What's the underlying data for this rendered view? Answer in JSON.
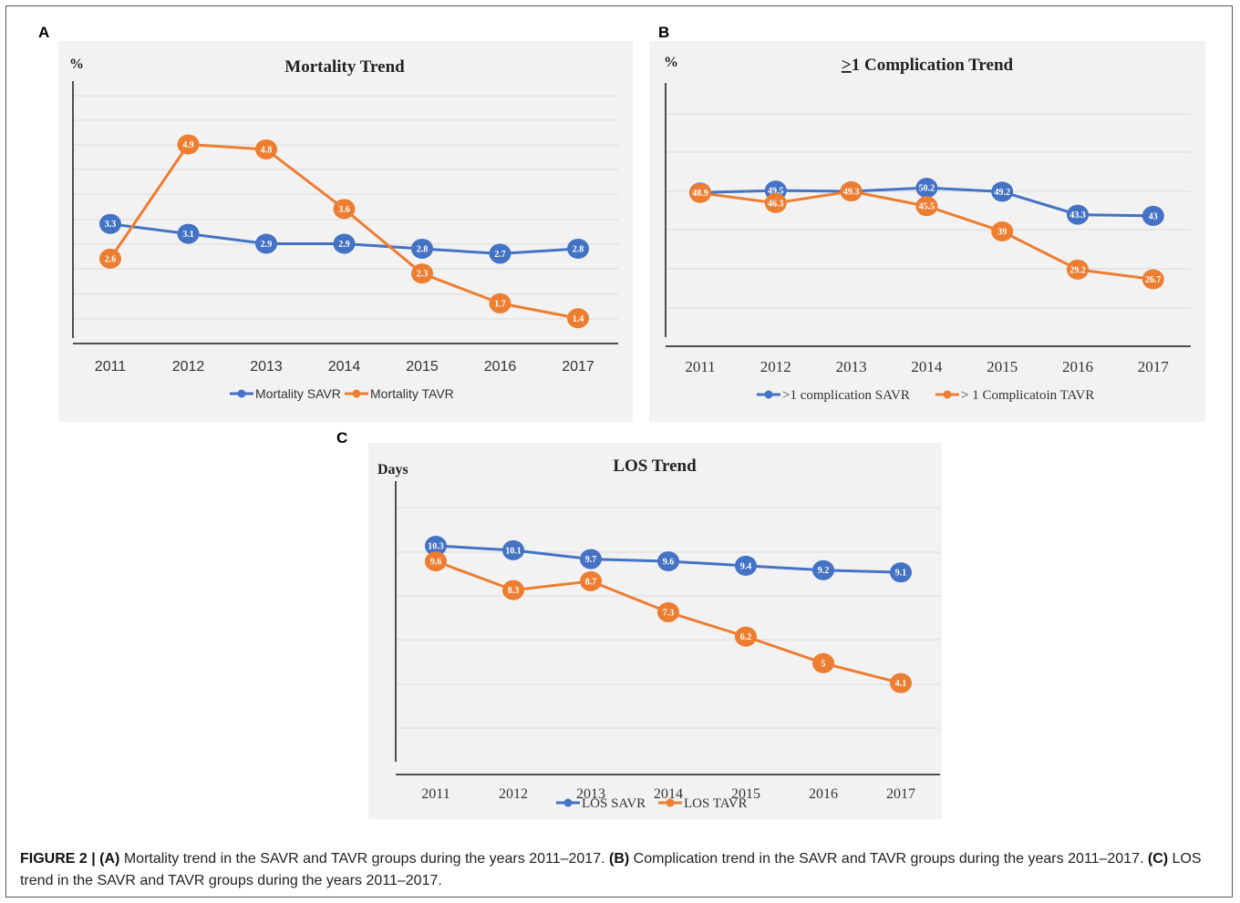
{
  "colors": {
    "savr": "#4472c4",
    "tavr": "#ed7d31",
    "grid": "#d9d9d9",
    "axis": "#1a1a1a",
    "panel_bg": "#f2f2f2"
  },
  "panels": [
    {
      "letter": "A"
    },
    {
      "letter": "B"
    },
    {
      "letter": "C"
    }
  ],
  "chart_data": [
    {
      "type": "line",
      "title": "Mortality Trend",
      "title_prefix": "",
      "ylabel": "%",
      "xlabel": "",
      "categories": [
        "2011",
        "2012",
        "2013",
        "2014",
        "2015",
        "2016",
        "2017"
      ],
      "ylim": [
        0,
        10
      ],
      "grid": true,
      "legend_position": "bottom",
      "series": [
        {
          "name": "Mortality SAVR",
          "values": [
            3.3,
            3.1,
            2.9,
            2.9,
            2.8,
            2.7,
            2.8
          ],
          "labels": [
            "3.3",
            "3.1",
            "2.9",
            "2.9",
            "2.8",
            "2.7",
            "2.8"
          ]
        },
        {
          "name": "Mortality TAVR",
          "values": [
            2.6,
            4.9,
            4.8,
            3.6,
            2.3,
            1.7,
            1.4
          ],
          "labels": [
            "2.6",
            "4.9",
            "4.8",
            "3.6",
            "2.3",
            "1.7",
            "1.4"
          ]
        }
      ]
    },
    {
      "type": "line",
      "title": "1 Complication Trend",
      "title_prefix": ">",
      "ylabel": "%",
      "xlabel": "",
      "categories": [
        "2011",
        "2012",
        "2013",
        "2014",
        "2015",
        "2016",
        "2017"
      ],
      "ylim": [
        0,
        100
      ],
      "grid": true,
      "legend_position": "bottom",
      "series": [
        {
          "name": ">1 complication SAVR",
          "values": [
            49,
            49.5,
            49.3,
            50.2,
            49.2,
            43.3,
            43
          ],
          "labels": [
            "49",
            "49.5",
            "49.3",
            "50.2",
            "49.2",
            "43.3",
            "43"
          ]
        },
        {
          "name": "> 1 Complicatoin  TAVR",
          "values": [
            48.9,
            46.3,
            49.3,
            45.5,
            39,
            29.2,
            26.7
          ],
          "labels": [
            "48.9",
            "46.3",
            "49.3",
            "45.5",
            "39",
            "29.2",
            "26.7"
          ]
        }
      ]
    },
    {
      "type": "line",
      "title": "LOS Trend",
      "title_prefix": "",
      "ylabel": "Days",
      "xlabel": "",
      "categories": [
        "2011",
        "2012",
        "2013",
        "2014",
        "2015",
        "2016",
        "2017"
      ],
      "ylim": [
        0,
        14
      ],
      "grid": true,
      "legend_position": "bottom",
      "series": [
        {
          "name": "LOS SAVR",
          "values": [
            10.3,
            10.1,
            9.7,
            9.6,
            9.4,
            9.2,
            9.1
          ],
          "labels": [
            "10.3",
            "10.1",
            "9.7",
            "9.6",
            "9.4",
            "9.2",
            "9.1"
          ]
        },
        {
          "name": "LOS  TAVR",
          "values": [
            9.6,
            8.3,
            8.7,
            7.3,
            6.2,
            5,
            4.1
          ],
          "labels": [
            "9.6",
            "8.3",
            "8.7",
            "7.3",
            "6.2",
            "5",
            "4.1"
          ]
        }
      ]
    }
  ],
  "caption": {
    "figure_label": "FIGURE 2 |",
    "parts": [
      {
        "tag": "(A)",
        "text": " Mortality trend in the SAVR and TAVR groups during the years 2011–2017. "
      },
      {
        "tag": "(B)",
        "text": " Complication trend in the SAVR and TAVR groups during the years 2011–2017. "
      },
      {
        "tag": "(C)",
        "text": " LOS trend in the SAVR and TAVR groups during the years 2011–2017."
      }
    ]
  }
}
